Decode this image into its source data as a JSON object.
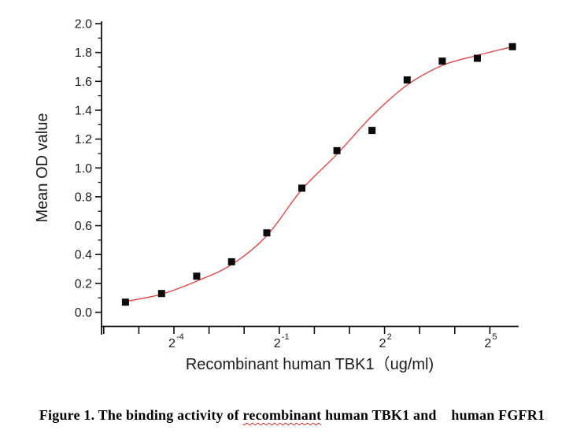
{
  "caption": {
    "prefix": "Figure 1. The binding activity of ",
    "marked_word": "recombinant",
    "suffix": " human TBK1 and    human FGFR1"
  },
  "chart_data": {
    "type": "scatter",
    "title": "",
    "xlabel": "Recombinant human TBK1（ug/ml)",
    "ylabel": "Mean OD value",
    "x_axis": {
      "scale": "log2",
      "tick_power_min": -6,
      "tick_power_max": 5,
      "labeled_ticks": [
        {
          "power": -4,
          "base": "2",
          "exp": "-4"
        },
        {
          "power": -1,
          "base": "2",
          "exp": "-1"
        },
        {
          "power": 2,
          "base": "2",
          "exp": "2"
        },
        {
          "power": 5,
          "base": "2",
          "exp": "5"
        }
      ]
    },
    "y_axis": {
      "min": 0.0,
      "max": 2.0,
      "major_step": 0.2,
      "minor_step": 0.1,
      "tick_labels": [
        "0.0",
        "0.2",
        "0.4",
        "0.6",
        "0.8",
        "1.0",
        "1.2",
        "1.4",
        "1.6",
        "1.8",
        "2.0"
      ]
    },
    "series": [
      {
        "name": "Mean OD value",
        "marker": "square",
        "color": "#0a0a0a",
        "x_ugml": [
          0.024,
          0.049,
          0.098,
          0.195,
          0.391,
          0.781,
          1.563,
          3.125,
          6.25,
          12.5,
          25,
          50
        ],
        "y_od": [
          0.07,
          0.13,
          0.25,
          0.35,
          0.55,
          0.86,
          1.12,
          1.26,
          1.61,
          1.74,
          1.76,
          1.84
        ]
      }
    ],
    "fit_curve": {
      "name": "4PL fit curve",
      "color": "#e64545",
      "points": [
        [
          -5.357,
          0.075
        ],
        [
          -4.357,
          0.125
        ],
        [
          -3.357,
          0.215
        ],
        [
          -2.357,
          0.33
        ],
        [
          -1.357,
          0.53
        ],
        [
          -0.356,
          0.85
        ],
        [
          0.644,
          1.095
        ],
        [
          1.644,
          1.36
        ],
        [
          2.644,
          1.575
        ],
        [
          3.644,
          1.71
        ],
        [
          4.644,
          1.78
        ],
        [
          5.644,
          1.84
        ]
      ]
    },
    "legend": "none",
    "grid": "off",
    "colors": {
      "axis": "#111111",
      "text": "#1c1c1c"
    }
  }
}
